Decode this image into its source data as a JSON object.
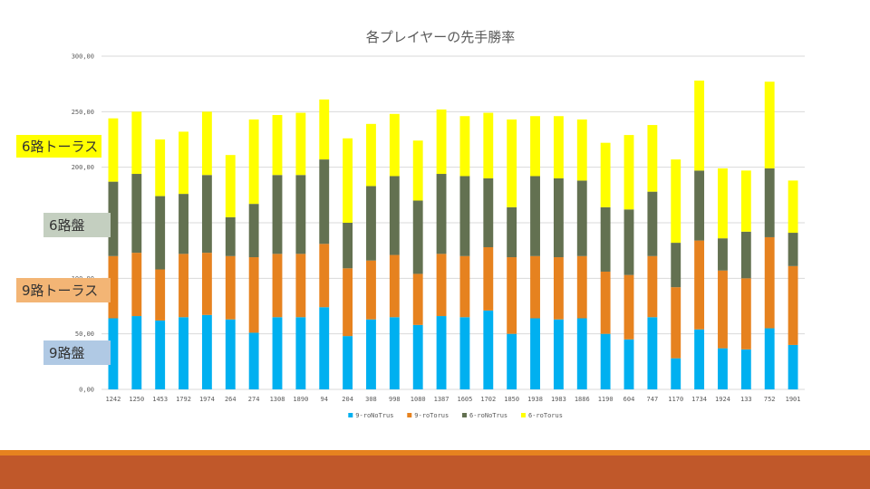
{
  "chart_data": {
    "type": "bar",
    "stacked": true,
    "title": "各プレイヤーの先手勝率",
    "categories": [
      "1242",
      "1250",
      "1453",
      "1792",
      "1974",
      "264",
      "274",
      "1308",
      "1890",
      "94",
      "204",
      "308",
      "998",
      "1080",
      "1387",
      "1605",
      "1702",
      "1850",
      "1938",
      "1983",
      "1886",
      "1190",
      "604",
      "747",
      "1170",
      "1734",
      "1924",
      "133",
      "752",
      "1901"
    ],
    "series": [
      {
        "name": "9-roNoTrus",
        "color": "#00b0f0",
        "values": [
          64,
          66,
          62,
          65,
          67,
          63,
          51,
          65,
          65,
          74,
          48,
          63,
          65,
          58,
          66,
          65,
          71,
          50,
          64,
          63,
          64,
          50,
          45,
          65,
          28,
          54,
          37,
          36,
          55,
          40
        ]
      },
      {
        "name": "9-roTorus",
        "color": "#e6821f",
        "values": [
          56,
          57,
          46,
          57,
          56,
          57,
          68,
          57,
          57,
          57,
          61,
          53,
          56,
          46,
          56,
          55,
          57,
          69,
          56,
          56,
          56,
          56,
          58,
          55,
          64,
          80,
          70,
          64,
          82,
          71
        ]
      },
      {
        "name": "6-roNoTrus",
        "color": "#637151",
        "values": [
          67,
          71,
          66,
          54,
          70,
          35,
          48,
          71,
          71,
          76,
          41,
          67,
          71,
          66,
          72,
          72,
          62,
          45,
          72,
          71,
          68,
          58,
          59,
          58,
          40,
          63,
          29,
          42,
          62,
          30
        ]
      },
      {
        "name": "6-roTorus",
        "color": "#ffff00",
        "values": [
          57,
          56,
          51,
          56,
          57,
          56,
          76,
          54,
          56,
          54,
          76,
          56,
          56,
          54,
          58,
          54,
          59,
          79,
          54,
          56,
          55,
          58,
          67,
          60,
          75,
          81,
          63,
          55,
          78,
          47
        ]
      }
    ],
    "ylim": [
      0,
      300
    ],
    "yticks": [
      "0,00",
      "50,00",
      "100,00",
      "150,00",
      "200,00",
      "250,00",
      "300,00"
    ],
    "ytick_values": [
      0,
      50,
      100,
      150,
      200,
      250,
      300
    ],
    "xlabel": "",
    "ylabel": "",
    "legend": "bottom"
  },
  "overlay_labels": {
    "six_torus": "6路トーラス",
    "six_ban": "6路盤",
    "nine_torus": "9路トーラス",
    "nine_ban": "9路盤"
  }
}
